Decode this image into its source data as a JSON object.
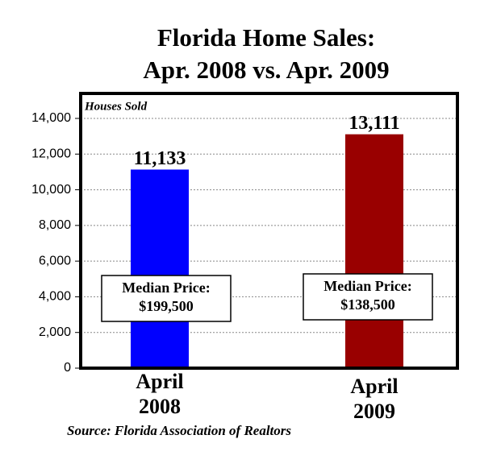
{
  "chart_data": {
    "type": "bar",
    "title": [
      "Florida Home Sales:",
      "Apr. 2008 vs. Apr. 2009"
    ],
    "y_label": "Houses Sold",
    "categories": [
      [
        "April",
        "2008"
      ],
      [
        "April",
        "2009"
      ]
    ],
    "values": [
      11133,
      13111
    ],
    "value_labels": [
      "11,133",
      "13,111"
    ],
    "colors": [
      "#0000ff",
      "#990000"
    ],
    "ylim": [
      0,
      15400
    ],
    "yticks": [
      0,
      {
        "value": 2000,
        "label": "2,000"
      },
      {
        "value": 4000,
        "label": "4,000"
      },
      {
        "value": 6000,
        "label": "6,000"
      },
      {
        "value": 8000,
        "label": "8,000"
      },
      {
        "value": 10000,
        "label": "10,000"
      },
      {
        "value": 12000,
        "label": "12,000"
      },
      {
        "value": 14000,
        "label": "14,000"
      }
    ],
    "grid": true,
    "annotations": [
      [
        "Median Price:",
        "$199,500"
      ],
      [
        "Median Price:",
        "$138,500"
      ]
    ],
    "source": "Source: Florida Association of Realtors"
  }
}
